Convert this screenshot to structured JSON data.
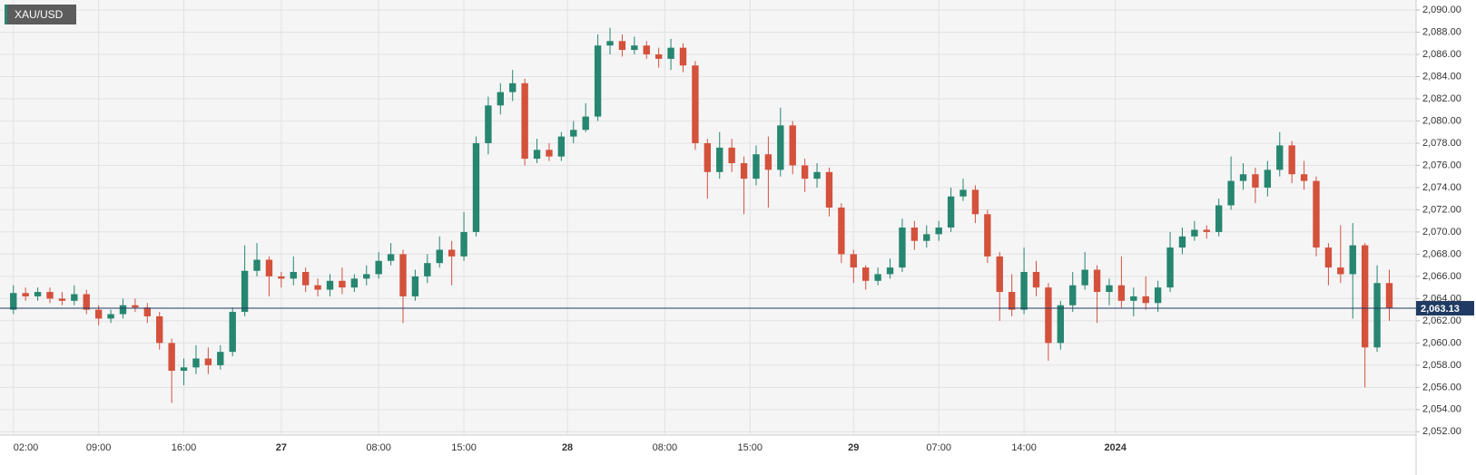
{
  "chart_data": {
    "type": "candlestick",
    "title": "XAU/USD",
    "up_color": "#26866f",
    "down_color": "#d4513c",
    "grid": true,
    "xlim": [
      -1.1,
      115.2
    ],
    "ylim": [
      2051.7,
      2090.9
    ],
    "last_price": {
      "value": 2063.13,
      "label": "2,063.13"
    },
    "xticks": [
      {
        "value": 0,
        "label": "02:00"
      },
      {
        "value": 7,
        "label": "09:00"
      },
      {
        "value": 14,
        "label": "16:00"
      },
      {
        "value": 22,
        "label": "27"
      },
      {
        "value": 30,
        "label": "08:00"
      },
      {
        "value": 37,
        "label": "15:00"
      },
      {
        "value": 45.5,
        "label": "28"
      },
      {
        "value": 53.5,
        "label": "08:00"
      },
      {
        "value": 60.5,
        "label": "15:00"
      },
      {
        "value": 69,
        "label": "29"
      },
      {
        "value": 76,
        "label": "07:00"
      },
      {
        "value": 83,
        "label": "14:00"
      },
      {
        "value": 90.5,
        "label": "2024"
      }
    ],
    "yticks": [
      {
        "value": 2052,
        "label": "2,052.00"
      },
      {
        "value": 2054,
        "label": "2,054.00"
      },
      {
        "value": 2056,
        "label": "2,056.00"
      },
      {
        "value": 2058,
        "label": "2,058.00"
      },
      {
        "value": 2060,
        "label": "2,060.00"
      },
      {
        "value": 2062,
        "label": "2,062.00"
      },
      {
        "value": 2064,
        "label": "2,064.00"
      },
      {
        "value": 2066,
        "label": "2,066.00"
      },
      {
        "value": 2068,
        "label": "2,068.00"
      },
      {
        "value": 2070,
        "label": "2,070.00"
      },
      {
        "value": 2072,
        "label": "2,072.00"
      },
      {
        "value": 2074,
        "label": "2,074.00"
      },
      {
        "value": 2076,
        "label": "2,076.00"
      },
      {
        "value": 2078,
        "label": "2,078.00"
      },
      {
        "value": 2080,
        "label": "2,080.00"
      },
      {
        "value": 2082,
        "label": "2,082.00"
      },
      {
        "value": 2084,
        "label": "2,084.00"
      },
      {
        "value": 2086,
        "label": "2,086.00"
      },
      {
        "value": 2088,
        "label": "2,088.00"
      },
      {
        "value": 2090,
        "label": "2,090.00"
      }
    ],
    "candles": [
      [
        2063.0,
        2065.2,
        2062.6,
        2064.5
      ],
      [
        2064.5,
        2065.0,
        2063.8,
        2064.2
      ],
      [
        2064.2,
        2065.0,
        2063.8,
        2064.6
      ],
      [
        2064.6,
        2065.0,
        2063.6,
        2064.0
      ],
      [
        2064.0,
        2064.6,
        2063.4,
        2063.8
      ],
      [
        2063.8,
        2065.2,
        2063.4,
        2064.4
      ],
      [
        2064.4,
        2064.8,
        2062.6,
        2063.0
      ],
      [
        2063.0,
        2063.4,
        2061.6,
        2062.2
      ],
      [
        2062.2,
        2063.0,
        2061.8,
        2062.6
      ],
      [
        2062.6,
        2064.0,
        2062.2,
        2063.4
      ],
      [
        2063.4,
        2064.0,
        2062.8,
        2063.2
      ],
      [
        2063.2,
        2063.6,
        2061.8,
        2062.4
      ],
      [
        2062.4,
        2062.8,
        2059.4,
        2060.0
      ],
      [
        2060.0,
        2060.4,
        2054.6,
        2057.5
      ],
      [
        2057.5,
        2058.6,
        2056.2,
        2057.8
      ],
      [
        2057.8,
        2059.8,
        2057.2,
        2058.6
      ],
      [
        2058.6,
        2059.6,
        2057.2,
        2058.0
      ],
      [
        2058.0,
        2059.8,
        2057.6,
        2059.2
      ],
      [
        2059.2,
        2063.2,
        2058.8,
        2062.8
      ],
      [
        2062.8,
        2068.8,
        2062.4,
        2066.5
      ],
      [
        2066.5,
        2069.0,
        2066.0,
        2067.5
      ],
      [
        2067.5,
        2067.8,
        2064.2,
        2066.0
      ],
      [
        2066.0,
        2066.4,
        2065.0,
        2065.8
      ],
      [
        2065.8,
        2067.8,
        2065.2,
        2066.4
      ],
      [
        2066.4,
        2066.8,
        2064.6,
        2065.2
      ],
      [
        2065.2,
        2065.8,
        2064.2,
        2064.8
      ],
      [
        2064.8,
        2066.2,
        2064.2,
        2065.6
      ],
      [
        2065.6,
        2066.8,
        2064.4,
        2065.0
      ],
      [
        2065.0,
        2066.2,
        2064.6,
        2065.8
      ],
      [
        2065.8,
        2067.0,
        2065.2,
        2066.2
      ],
      [
        2066.2,
        2068.2,
        2065.8,
        2067.4
      ],
      [
        2067.4,
        2069.0,
        2067.0,
        2068.0
      ],
      [
        2068.0,
        2068.4,
        2061.8,
        2064.2
      ],
      [
        2064.2,
        2066.6,
        2063.8,
        2066.0
      ],
      [
        2066.0,
        2068.0,
        2065.4,
        2067.2
      ],
      [
        2067.2,
        2069.6,
        2066.8,
        2068.4
      ],
      [
        2068.4,
        2069.2,
        2065.2,
        2067.8
      ],
      [
        2067.8,
        2071.8,
        2067.4,
        2070.0
      ],
      [
        2070.0,
        2078.6,
        2069.6,
        2078.0
      ],
      [
        2078.0,
        2082.2,
        2077.0,
        2081.4
      ],
      [
        2081.4,
        2083.4,
        2080.6,
        2082.6
      ],
      [
        2082.6,
        2084.6,
        2081.8,
        2083.4
      ],
      [
        2083.4,
        2083.8,
        2076.0,
        2076.6
      ],
      [
        2076.6,
        2078.4,
        2076.2,
        2077.4
      ],
      [
        2077.4,
        2078.0,
        2076.4,
        2076.8
      ],
      [
        2076.8,
        2079.0,
        2076.4,
        2078.6
      ],
      [
        2078.6,
        2080.0,
        2078.0,
        2079.2
      ],
      [
        2079.2,
        2081.6,
        2079.0,
        2080.4
      ],
      [
        2080.4,
        2087.8,
        2080.0,
        2086.8
      ],
      [
        2086.8,
        2088.4,
        2086.0,
        2087.2
      ],
      [
        2087.2,
        2087.8,
        2085.8,
        2086.4
      ],
      [
        2086.4,
        2087.6,
        2086.0,
        2086.8
      ],
      [
        2086.8,
        2087.2,
        2085.6,
        2086.0
      ],
      [
        2086.0,
        2086.6,
        2084.8,
        2085.6
      ],
      [
        2085.6,
        2087.4,
        2084.6,
        2086.6
      ],
      [
        2086.6,
        2087.0,
        2084.4,
        2085.0
      ],
      [
        2085.0,
        2085.4,
        2077.4,
        2078.0
      ],
      [
        2078.0,
        2078.4,
        2073.0,
        2075.4
      ],
      [
        2075.4,
        2079.0,
        2074.8,
        2077.6
      ],
      [
        2077.6,
        2078.4,
        2075.4,
        2076.2
      ],
      [
        2076.2,
        2076.8,
        2071.6,
        2074.8
      ],
      [
        2074.8,
        2077.8,
        2074.2,
        2077.0
      ],
      [
        2077.0,
        2078.6,
        2072.2,
        2075.6
      ],
      [
        2075.6,
        2081.2,
        2075.0,
        2079.6
      ],
      [
        2079.6,
        2080.0,
        2075.2,
        2076.0
      ],
      [
        2076.0,
        2076.6,
        2073.6,
        2074.8
      ],
      [
        2074.8,
        2076.2,
        2074.0,
        2075.4
      ],
      [
        2075.4,
        2075.8,
        2071.4,
        2072.2
      ],
      [
        2072.2,
        2072.6,
        2067.2,
        2068.0
      ],
      [
        2068.0,
        2068.4,
        2065.4,
        2066.8
      ],
      [
        2066.8,
        2067.0,
        2064.8,
        2065.6
      ],
      [
        2065.6,
        2066.8,
        2065.2,
        2066.2
      ],
      [
        2066.2,
        2067.6,
        2065.8,
        2066.8
      ],
      [
        2066.8,
        2071.2,
        2066.4,
        2070.4
      ],
      [
        2070.4,
        2071.0,
        2068.4,
        2069.2
      ],
      [
        2069.2,
        2070.6,
        2068.6,
        2069.8
      ],
      [
        2069.8,
        2071.0,
        2069.2,
        2070.4
      ],
      [
        2070.4,
        2074.0,
        2070.0,
        2073.2
      ],
      [
        2073.2,
        2074.8,
        2072.8,
        2073.8
      ],
      [
        2073.8,
        2074.2,
        2070.8,
        2071.6
      ],
      [
        2071.6,
        2072.0,
        2067.2,
        2067.8
      ],
      [
        2067.8,
        2068.2,
        2062.0,
        2064.6
      ],
      [
        2064.6,
        2066.2,
        2062.4,
        2063.0
      ],
      [
        2063.0,
        2068.6,
        2062.6,
        2066.4
      ],
      [
        2066.4,
        2067.4,
        2064.2,
        2065.0
      ],
      [
        2065.0,
        2065.4,
        2058.4,
        2060.0
      ],
      [
        2060.0,
        2063.8,
        2059.4,
        2063.4
      ],
      [
        2063.4,
        2066.4,
        2062.8,
        2065.2
      ],
      [
        2065.2,
        2068.2,
        2064.8,
        2066.6
      ],
      [
        2066.6,
        2067.0,
        2061.8,
        2064.6
      ],
      [
        2064.6,
        2065.8,
        2063.4,
        2065.2
      ],
      [
        2065.2,
        2067.8,
        2063.2,
        2063.8
      ],
      [
        2063.8,
        2065.0,
        2062.4,
        2064.2
      ],
      [
        2064.2,
        2066.0,
        2063.0,
        2063.6
      ],
      [
        2063.6,
        2065.6,
        2062.8,
        2065.0
      ],
      [
        2065.0,
        2070.0,
        2064.6,
        2068.6
      ],
      [
        2068.6,
        2070.4,
        2068.0,
        2069.6
      ],
      [
        2069.6,
        2071.0,
        2069.2,
        2070.2
      ],
      [
        2070.2,
        2070.6,
        2069.4,
        2070.0
      ],
      [
        2070.0,
        2073.0,
        2069.6,
        2072.4
      ],
      [
        2072.4,
        2076.8,
        2072.0,
        2074.6
      ],
      [
        2074.6,
        2076.2,
        2073.8,
        2075.2
      ],
      [
        2075.2,
        2075.8,
        2072.6,
        2074.0
      ],
      [
        2074.0,
        2076.4,
        2073.2,
        2075.6
      ],
      [
        2075.6,
        2079.0,
        2075.0,
        2077.8
      ],
      [
        2077.8,
        2078.2,
        2074.4,
        2075.2
      ],
      [
        2075.2,
        2076.4,
        2073.8,
        2074.6
      ],
      [
        2074.6,
        2075.0,
        2067.8,
        2068.6
      ],
      [
        2068.6,
        2069.0,
        2065.2,
        2066.8
      ],
      [
        2066.8,
        2070.6,
        2065.4,
        2066.2
      ],
      [
        2066.2,
        2070.8,
        2062.2,
        2068.8
      ],
      [
        2068.8,
        2069.0,
        2056.0,
        2059.6
      ],
      [
        2059.6,
        2067.0,
        2059.2,
        2065.4
      ],
      [
        2065.4,
        2066.6,
        2062.0,
        2063.13
      ]
    ]
  }
}
